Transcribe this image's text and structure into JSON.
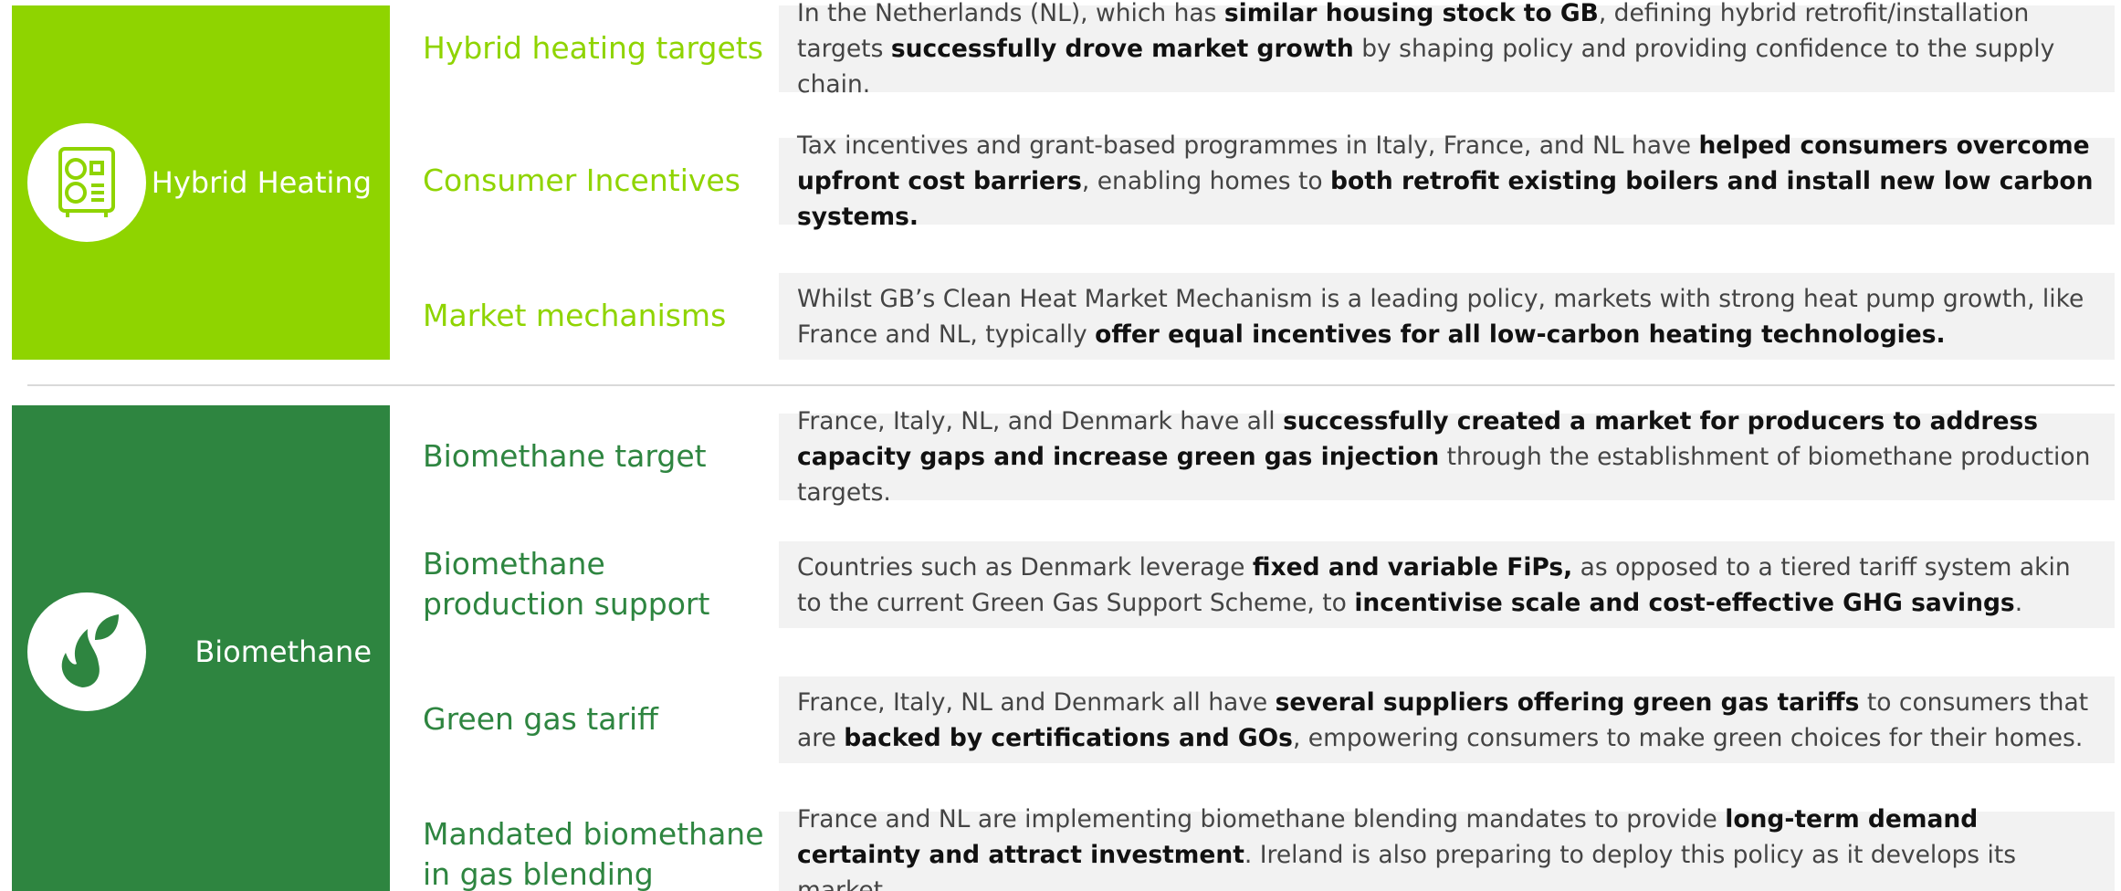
{
  "sections": [
    {
      "title": "Hybrid Heating",
      "color": "#8fd400",
      "rows": [
        {
          "label": "Hybrid heating targets",
          "text": [
            {
              "text": "In the Netherlands (NL), which has ",
              "bold": false
            },
            {
              "text": "similar housing stock to GB",
              "bold": true
            },
            {
              "text": ", defining hybrid retrofit/installation targets ",
              "bold": false
            },
            {
              "text": "successfully drove market growth",
              "bold": true
            },
            {
              "text": " by shaping policy and providing confidence to the supply chain.",
              "bold": false
            }
          ]
        },
        {
          "label": "Consumer Incentives",
          "text": [
            {
              "text": "Tax incentives and grant-based programmes in Italy, France, and NL have ",
              "bold": false
            },
            {
              "text": "helped consumers overcome upfront cost barriers",
              "bold": true
            },
            {
              "text": ", enabling homes to ",
              "bold": false
            },
            {
              "text": "both retrofit existing boilers and install new low carbon systems.",
              "bold": true
            }
          ]
        },
        {
          "label": "Market mechanisms",
          "text": [
            {
              "text": "Whilst GB’s Clean Heat Market Mechanism is a leading policy, markets with strong heat pump growth, like France and NL, typically ",
              "bold": false
            },
            {
              "text": "offer equal incentives for all low-carbon heating technologies.",
              "bold": true
            }
          ]
        }
      ]
    },
    {
      "title": "Biomethane",
      "color": "#2e8540",
      "rows": [
        {
          "label": "Biomethane target",
          "text": [
            {
              "text": "France, Italy, NL, and Denmark have all ",
              "bold": false
            },
            {
              "text": "successfully created a market for producers to address capacity gaps and increase green gas injection",
              "bold": true
            },
            {
              "text": " through the establishment of biomethane production targets.",
              "bold": false
            }
          ]
        },
        {
          "label": "Biomethane production support",
          "text": [
            {
              "text": "Countries such as Denmark leverage ",
              "bold": false
            },
            {
              "text": "fixed and variable FiPs,",
              "bold": true
            },
            {
              "text": " as opposed to a tiered tariff system akin to the current Green Gas Support Scheme, to ",
              "bold": false
            },
            {
              "text": "incentivise scale and cost-effective GHG savings",
              "bold": true
            },
            {
              "text": ".",
              "bold": false
            }
          ]
        },
        {
          "label": "Green gas tariff",
          "text": [
            {
              "text": "France, Italy, NL and Denmark all have ",
              "bold": false
            },
            {
              "text": "several suppliers offering green gas tariffs",
              "bold": true
            },
            {
              "text": " to consumers that are ",
              "bold": false
            },
            {
              "text": "backed by certifications and GOs",
              "bold": true
            },
            {
              "text": ", empowering consumers to make green choices for their homes.",
              "bold": false
            }
          ]
        },
        {
          "label": "Mandated biomethane in gas blending",
          "text": [
            {
              "text": "France and NL are implementing biomethane blending mandates to provide ",
              "bold": false
            },
            {
              "text": "long-term demand certainty and attract investment",
              "bold": true
            },
            {
              "text": ". Ireland is also preparing to deploy this policy as it develops its market.",
              "bold": false
            }
          ]
        }
      ]
    }
  ]
}
